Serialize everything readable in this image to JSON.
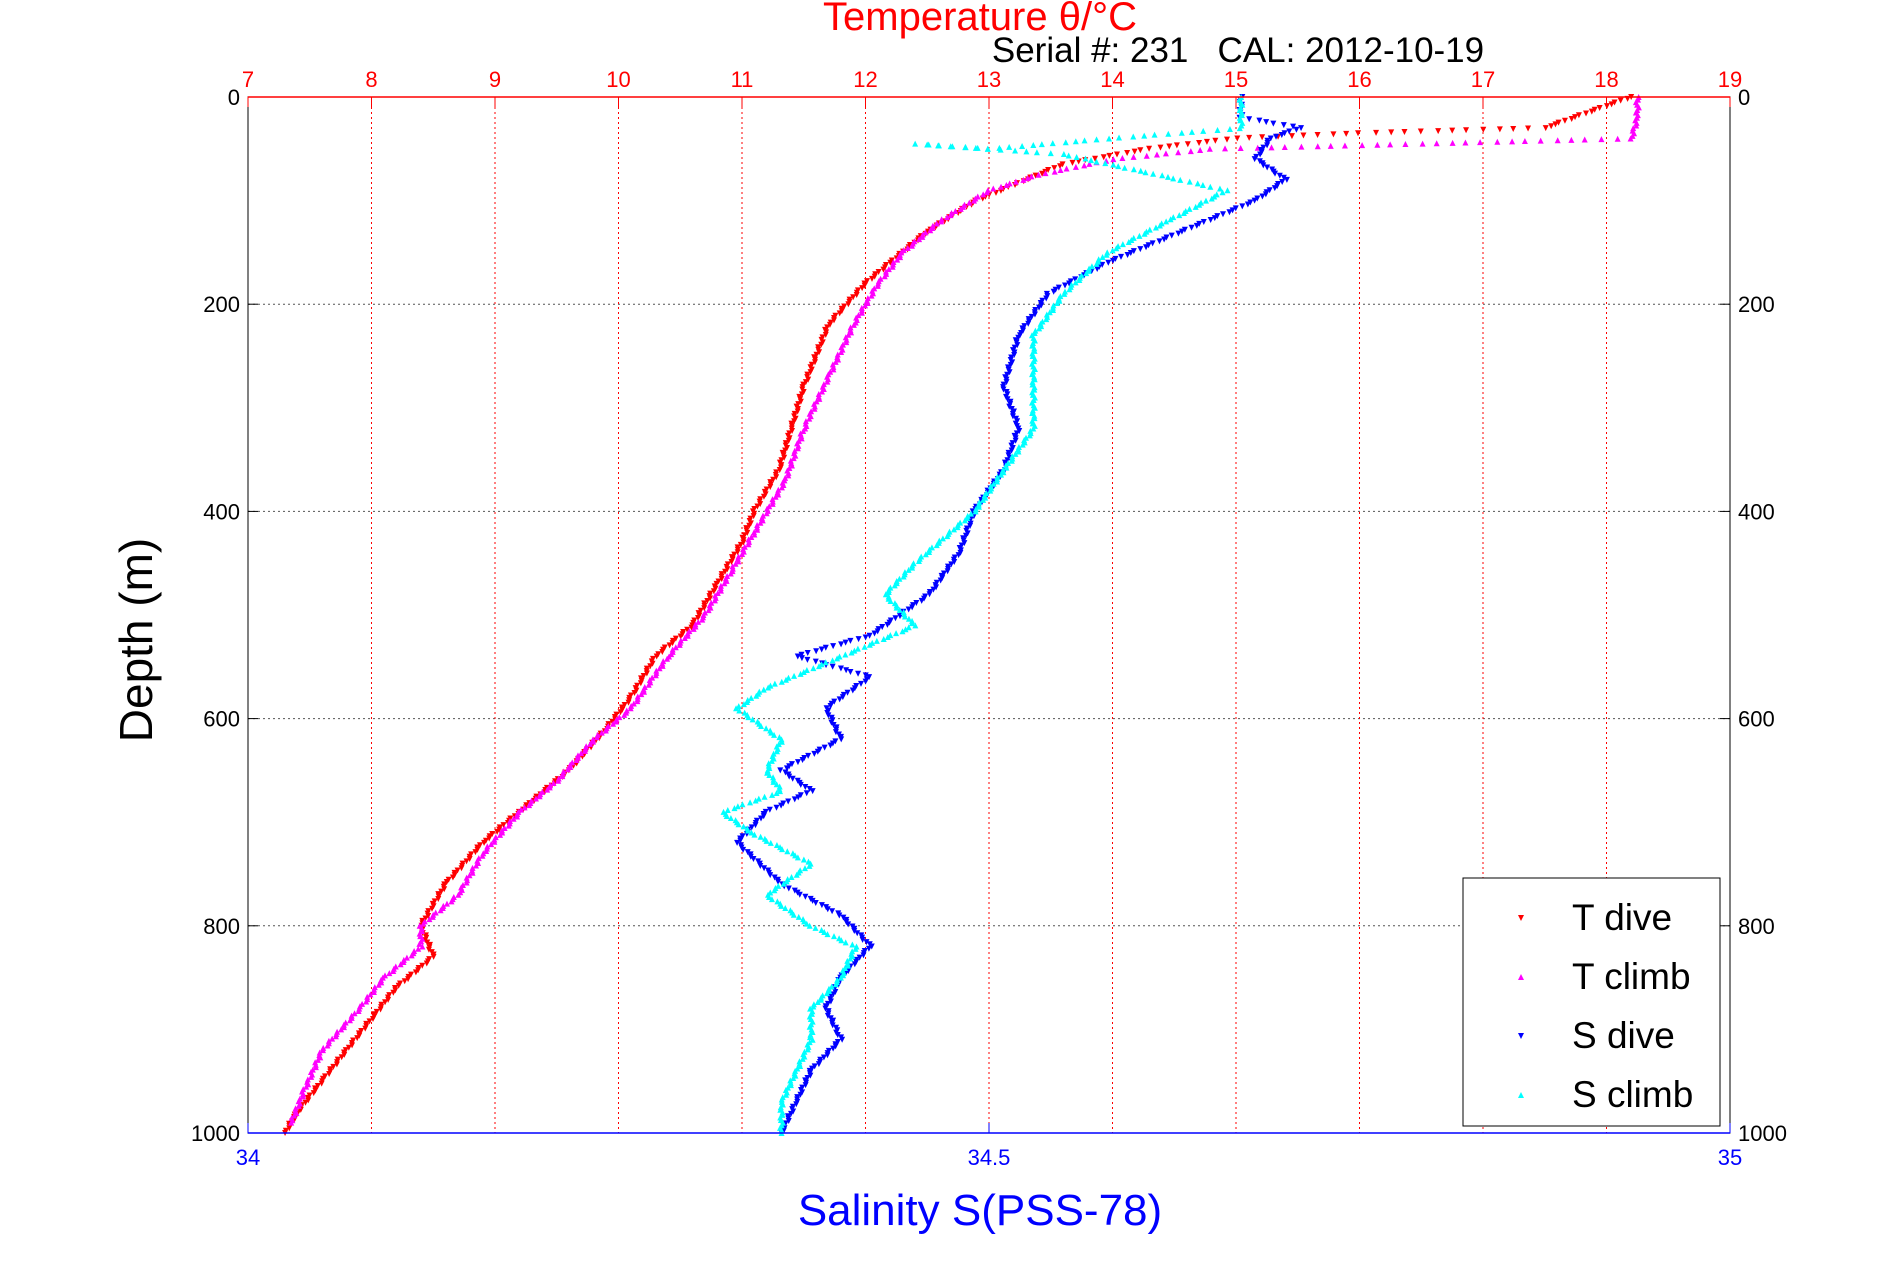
{
  "chart_data": {
    "type": "scatter",
    "title": "Temperature θ/°C",
    "subtitle": "Serial #: 231   CAL: 2012-10-19",
    "ylabel": "Depth (m)",
    "xlabel_bottom": "Salinity S(PSS-78)",
    "xlabel_top": "Temperature θ/°C",
    "ylim": [
      0,
      1000
    ],
    "y_reversed": true,
    "y_ticks": [
      "0",
      "200",
      "400",
      "600",
      "800",
      "1000"
    ],
    "x_top_lim": [
      7,
      19
    ],
    "x_top_ticks": [
      "7",
      "8",
      "9",
      "10",
      "11",
      "12",
      "13",
      "14",
      "15",
      "16",
      "17",
      "18",
      "19"
    ],
    "x_bottom_lim": [
      34,
      35
    ],
    "x_bottom_ticks": [
      "34",
      "34.5",
      "35"
    ],
    "grid": true,
    "legend_position": "bottom-right",
    "colors": {
      "t_dive": "#ff0000",
      "t_climb": "#ff00ff",
      "s_dive": "#0000ff",
      "s_climb": "#00ffff",
      "top_axis": "#ff0000",
      "bottom_axis": "#0000ff"
    },
    "series": [
      {
        "name": "T dive",
        "axis": "temperature",
        "marker": "triangle-down",
        "points": [
          [
            18.2,
            0
          ],
          [
            17.5,
            30
          ],
          [
            16.0,
            35
          ],
          [
            15.0,
            40
          ],
          [
            14.3,
            50
          ],
          [
            13.6,
            65
          ],
          [
            13.2,
            85
          ],
          [
            12.9,
            100
          ],
          [
            12.5,
            130
          ],
          [
            12.2,
            160
          ],
          [
            12.0,
            180
          ],
          [
            11.7,
            220
          ],
          [
            11.5,
            280
          ],
          [
            11.4,
            320
          ],
          [
            11.3,
            360
          ],
          [
            11.1,
            400
          ],
          [
            11.0,
            430
          ],
          [
            10.8,
            470
          ],
          [
            10.6,
            510
          ],
          [
            10.3,
            540
          ],
          [
            10.1,
            580
          ],
          [
            9.9,
            610
          ],
          [
            9.6,
            650
          ],
          [
            9.2,
            690
          ],
          [
            8.9,
            720
          ],
          [
            8.6,
            760
          ],
          [
            8.4,
            800
          ],
          [
            8.5,
            830
          ],
          [
            8.2,
            860
          ],
          [
            8.0,
            890
          ],
          [
            7.8,
            920
          ],
          [
            7.6,
            950
          ],
          [
            7.4,
            980
          ],
          [
            7.3,
            1000
          ]
        ]
      },
      {
        "name": "T climb",
        "axis": "temperature",
        "marker": "triangle-up",
        "points": [
          [
            18.25,
            0
          ],
          [
            18.25,
            20
          ],
          [
            18.2,
            40
          ],
          [
            16.5,
            45
          ],
          [
            14.8,
            50
          ],
          [
            14.0,
            60
          ],
          [
            13.4,
            75
          ],
          [
            13.0,
            90
          ],
          [
            12.6,
            120
          ],
          [
            12.3,
            150
          ],
          [
            12.1,
            180
          ],
          [
            11.9,
            220
          ],
          [
            11.7,
            270
          ],
          [
            11.5,
            320
          ],
          [
            11.35,
            370
          ],
          [
            11.1,
            420
          ],
          [
            10.9,
            460
          ],
          [
            10.7,
            500
          ],
          [
            10.4,
            540
          ],
          [
            10.1,
            590
          ],
          [
            9.8,
            620
          ],
          [
            9.5,
            660
          ],
          [
            9.2,
            690
          ],
          [
            8.9,
            730
          ],
          [
            8.7,
            770
          ],
          [
            8.4,
            800
          ],
          [
            8.4,
            820
          ],
          [
            8.1,
            850
          ],
          [
            7.9,
            880
          ],
          [
            7.6,
            920
          ],
          [
            7.45,
            960
          ],
          [
            7.35,
            990
          ]
        ]
      },
      {
        "name": "S dive",
        "axis": "salinity",
        "marker": "triangle-down",
        "points": [
          [
            34.67,
            0
          ],
          [
            34.67,
            20
          ],
          [
            34.71,
            30
          ],
          [
            34.69,
            40
          ],
          [
            34.68,
            60
          ],
          [
            34.7,
            80
          ],
          [
            34.68,
            100
          ],
          [
            34.63,
            130
          ],
          [
            34.58,
            160
          ],
          [
            34.54,
            190
          ],
          [
            34.52,
            230
          ],
          [
            34.51,
            280
          ],
          [
            34.52,
            320
          ],
          [
            34.51,
            360
          ],
          [
            34.49,
            400
          ],
          [
            34.48,
            440
          ],
          [
            34.46,
            480
          ],
          [
            34.42,
            520
          ],
          [
            34.37,
            540
          ],
          [
            34.42,
            560
          ],
          [
            34.39,
            590
          ],
          [
            34.4,
            620
          ],
          [
            34.36,
            650
          ],
          [
            34.38,
            670
          ],
          [
            34.35,
            690
          ],
          [
            34.33,
            720
          ],
          [
            34.36,
            760
          ],
          [
            34.4,
            790
          ],
          [
            34.42,
            820
          ],
          [
            34.4,
            850
          ],
          [
            34.39,
            880
          ],
          [
            34.4,
            910
          ],
          [
            34.38,
            940
          ],
          [
            34.37,
            970
          ],
          [
            34.36,
            1000
          ]
        ]
      },
      {
        "name": "S climb",
        "axis": "salinity",
        "marker": "triangle-up",
        "points": [
          [
            34.67,
            0
          ],
          [
            34.67,
            30
          ],
          [
            34.58,
            40
          ],
          [
            34.5,
            50
          ],
          [
            34.45,
            45
          ],
          [
            34.55,
            55
          ],
          [
            34.63,
            80
          ],
          [
            34.66,
            90
          ],
          [
            34.62,
            120
          ],
          [
            34.58,
            150
          ],
          [
            34.55,
            190
          ],
          [
            34.53,
            230
          ],
          [
            34.53,
            280
          ],
          [
            34.53,
            320
          ],
          [
            34.51,
            360
          ],
          [
            34.49,
            400
          ],
          [
            34.45,
            450
          ],
          [
            34.43,
            480
          ],
          [
            34.45,
            510
          ],
          [
            34.4,
            540
          ],
          [
            34.35,
            570
          ],
          [
            34.33,
            590
          ],
          [
            34.36,
            620
          ],
          [
            34.35,
            650
          ],
          [
            34.36,
            670
          ],
          [
            34.32,
            690
          ],
          [
            34.34,
            710
          ],
          [
            34.38,
            740
          ],
          [
            34.35,
            770
          ],
          [
            34.38,
            800
          ],
          [
            34.41,
            820
          ],
          [
            34.4,
            850
          ],
          [
            34.38,
            880
          ],
          [
            34.38,
            910
          ],
          [
            34.37,
            940
          ],
          [
            34.36,
            970
          ],
          [
            34.36,
            1000
          ]
        ]
      }
    ]
  }
}
